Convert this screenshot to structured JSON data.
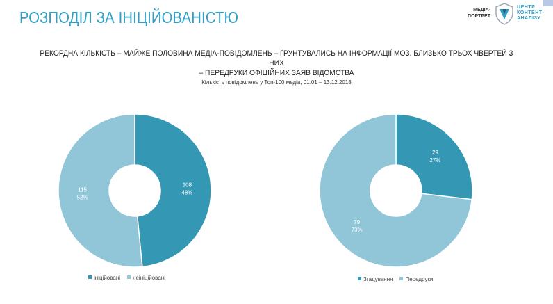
{
  "header": {
    "title": "РОЗПОДІЛ ЗА ІНІЦІЙОВАНІСТЮ",
    "logo_left": [
      "МЕДІА-",
      "ПОРТРЕТ"
    ],
    "logo_right": [
      "ЦЕНТР",
      "КОНТЕНТ-",
      "АНАЛІЗУ"
    ]
  },
  "headline": {
    "line1": "РЕКОРДНА КІЛЬКІСТЬ – МАЙЖЕ ПОЛОВИНА МЕДІА-ПОВІДОМЛЕНЬ – ҐРУНТУВАЛИСЬ НА ІНФОРМАЦІЇ МОЗ. БЛИЗЬКО ТРЬОХ ЧВЕРТЕЙ З НИХ",
    "line2": "– ПЕРЕДРУКИ ОФІЦІЙНИХ ЗАЯВ ВІДОМСТВА"
  },
  "subtitle": "Кількість повідомлень у Топ-100 медіа, 01.01 – 13.12.2018",
  "colors": {
    "dark": "#3497b4",
    "light": "#91c5d8"
  },
  "chart_data": [
    {
      "type": "pie",
      "donut": true,
      "slices": [
        {
          "label": "ініційовані",
          "value": 108,
          "percent": "48%",
          "color": "#3497b4"
        },
        {
          "label": "неініційовані",
          "value": 115,
          "percent": "52%",
          "color": "#91c5d8"
        }
      ],
      "legend": "bottom"
    },
    {
      "type": "pie",
      "donut": true,
      "slices": [
        {
          "label": "Згадування",
          "value": 29,
          "percent": "27%",
          "color": "#3497b4"
        },
        {
          "label": "Передруки",
          "value": 79,
          "percent": "73%",
          "color": "#91c5d8"
        }
      ],
      "legend": "bottom"
    }
  ]
}
